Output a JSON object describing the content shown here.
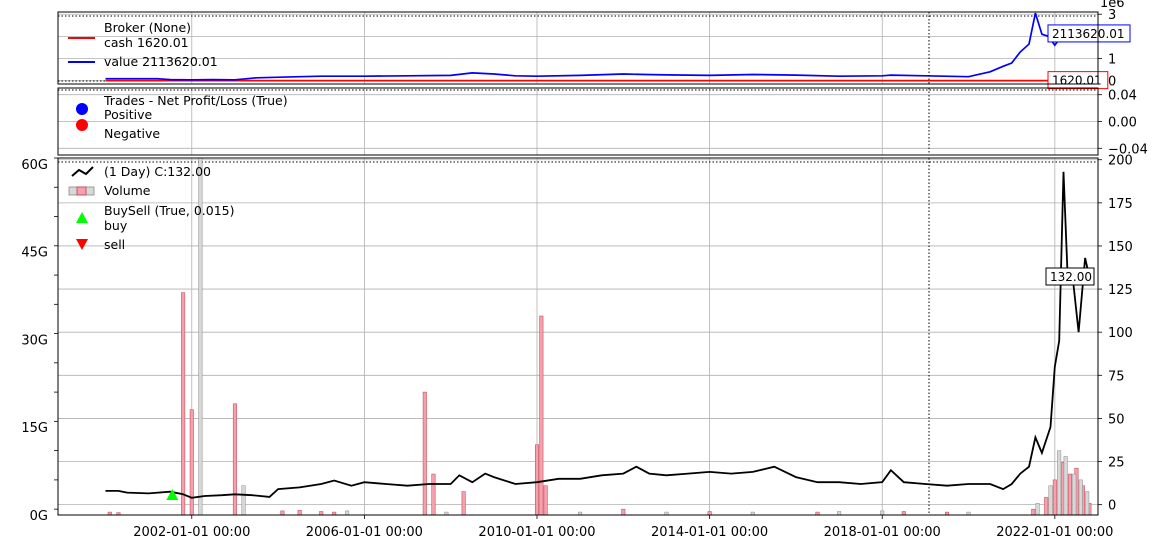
{
  "chart_data": [
    {
      "panel": "broker",
      "type": "line",
      "y_offset_label": "1e6",
      "ylim": [
        -0.15,
        3.1
      ],
      "yticks": [
        0,
        1,
        2,
        3
      ],
      "ytick_labels": [
        "0",
        "1",
        "2",
        "3"
      ],
      "grid": true,
      "legend_placement": "top-left",
      "legend_title": "Broker (None)",
      "series": [
        {
          "name": "cash 1620.01",
          "color": "#ff0000",
          "last_label": "1620.01",
          "points": [
            [
              2000.0,
              0.0016
            ],
            [
              2022.2,
              0.0016
            ]
          ]
        },
        {
          "name": "value 2113620.01",
          "color": "#0000ff",
          "last_label": "2113620.01",
          "points": [
            [
              2000.0,
              0.09
            ],
            [
              2001.2,
              0.09
            ],
            [
              2001.5,
              0.05
            ],
            [
              2002.0,
              0.04
            ],
            [
              2002.5,
              0.05
            ],
            [
              2003.0,
              0.04
            ],
            [
              2003.5,
              0.13
            ],
            [
              2004.5,
              0.18
            ],
            [
              2005.0,
              0.2
            ],
            [
              2006.0,
              0.2
            ],
            [
              2007.0,
              0.22
            ],
            [
              2008.0,
              0.24
            ],
            [
              2008.5,
              0.35
            ],
            [
              2009.0,
              0.3
            ],
            [
              2009.5,
              0.22
            ],
            [
              2010.0,
              0.2
            ],
            [
              2011.0,
              0.24
            ],
            [
              2012.0,
              0.3
            ],
            [
              2012.5,
              0.28
            ],
            [
              2013.0,
              0.26
            ],
            [
              2014.0,
              0.24
            ],
            [
              2015.0,
              0.28
            ],
            [
              2016.0,
              0.25
            ],
            [
              2017.0,
              0.2
            ],
            [
              2018.0,
              0.22
            ],
            [
              2018.2,
              0.25
            ],
            [
              2019.0,
              0.22
            ],
            [
              2020.0,
              0.18
            ],
            [
              2020.5,
              0.4
            ],
            [
              2020.8,
              0.65
            ],
            [
              2021.0,
              0.8
            ],
            [
              2021.2,
              1.3
            ],
            [
              2021.4,
              1.65
            ],
            [
              2021.55,
              3.05
            ],
            [
              2021.7,
              2.1
            ],
            [
              2021.85,
              2.0
            ],
            [
              2022.0,
              1.6
            ],
            [
              2022.2,
              2.11
            ]
          ]
        }
      ]
    },
    {
      "panel": "trades",
      "type": "scatter",
      "ylim": [
        -0.05,
        0.05
      ],
      "yticks": [
        -0.04,
        0.0,
        0.04
      ],
      "ytick_labels": [
        "−0.04",
        "0.00",
        "0.04"
      ],
      "grid": true,
      "legend_placement": "top-left",
      "legend_title": "Trades - Net Profit/Loss (True)",
      "series": [
        {
          "name": "Positive",
          "color": "#0000ff",
          "values": []
        },
        {
          "name": "Negative",
          "color": "#ff0000",
          "values": []
        }
      ]
    },
    {
      "panel": "price",
      "type": "line",
      "xlim": [
        1998.9,
        2023.0
      ],
      "xticks": [
        "2002-01-01 00:00",
        "2006-01-01 00:00",
        "2010-01-01 00:00",
        "2014-01-01 00:00",
        "2018-01-01 00:00",
        "2022-01-01 00:00"
      ],
      "xtick_years": [
        2002,
        2006,
        2010,
        2014,
        2018,
        2022
      ],
      "ylim": [
        -6,
        201
      ],
      "yticks": [
        0,
        25,
        50,
        75,
        100,
        125,
        150,
        175,
        200
      ],
      "ytick_labels": [
        "0",
        "25",
        "50",
        "75",
        "100",
        "125",
        "150",
        "175",
        "200"
      ],
      "volume_ylim": [
        0,
        61
      ],
      "volume_ticks": [
        0,
        15,
        30,
        45,
        60
      ],
      "volume_tick_labels": [
        "0G",
        "15G",
        "30G",
        "45G",
        "60G"
      ],
      "grid": true,
      "legend_placement": "top-left",
      "legend": [
        "(1 Day) C:132.00",
        "Volume",
        "BuySell (True, 0.015)",
        "buy",
        "sell"
      ],
      "last_close_label": "132.00",
      "close": [
        [
          2000.0,
          8
        ],
        [
          2000.3,
          8
        ],
        [
          2000.5,
          7
        ],
        [
          2001.0,
          6.5
        ],
        [
          2001.5,
          7.5
        ],
        [
          2001.8,
          6
        ],
        [
          2002.0,
          4
        ],
        [
          2002.3,
          5
        ],
        [
          2002.7,
          5.5
        ],
        [
          2003.0,
          6
        ],
        [
          2003.4,
          5.5
        ],
        [
          2003.8,
          4.5
        ],
        [
          2004.0,
          9
        ],
        [
          2004.5,
          10
        ],
        [
          2005.0,
          12
        ],
        [
          2005.3,
          14
        ],
        [
          2005.7,
          11
        ],
        [
          2006.0,
          13
        ],
        [
          2006.5,
          12
        ],
        [
          2007.0,
          11
        ],
        [
          2007.5,
          12
        ],
        [
          2008.0,
          12
        ],
        [
          2008.2,
          17
        ],
        [
          2008.5,
          13
        ],
        [
          2008.8,
          18
        ],
        [
          2009.0,
          16
        ],
        [
          2009.5,
          12
        ],
        [
          2010.0,
          13
        ],
        [
          2010.5,
          15
        ],
        [
          2011.0,
          15
        ],
        [
          2011.5,
          17
        ],
        [
          2012.0,
          18
        ],
        [
          2012.3,
          22
        ],
        [
          2012.6,
          18
        ],
        [
          2013.0,
          17
        ],
        [
          2013.5,
          18
        ],
        [
          2014.0,
          19
        ],
        [
          2014.5,
          18
        ],
        [
          2015.0,
          19
        ],
        [
          2015.5,
          22
        ],
        [
          2016.0,
          16
        ],
        [
          2016.5,
          13
        ],
        [
          2017.0,
          13
        ],
        [
          2017.5,
          12
        ],
        [
          2018.0,
          13
        ],
        [
          2018.2,
          20
        ],
        [
          2018.5,
          13
        ],
        [
          2019.0,
          12
        ],
        [
          2019.5,
          11
        ],
        [
          2020.0,
          12
        ],
        [
          2020.5,
          12
        ],
        [
          2020.8,
          9
        ],
        [
          2021.0,
          12
        ],
        [
          2021.2,
          18
        ],
        [
          2021.4,
          22
        ],
        [
          2021.55,
          39
        ],
        [
          2021.7,
          30
        ],
        [
          2021.9,
          45
        ],
        [
          2022.0,
          80
        ],
        [
          2022.1,
          95
        ],
        [
          2022.2,
          193
        ],
        [
          2022.3,
          130
        ],
        [
          2022.4,
          135
        ],
        [
          2022.55,
          100
        ],
        [
          2022.7,
          143
        ],
        [
          2022.8,
          132
        ]
      ],
      "buy_markers": [
        [
          2001.55,
          5
        ]
      ],
      "volume_pink": [
        [
          2000.1,
          0.5
        ],
        [
          2000.3,
          0.4
        ],
        [
          2001.8,
          38
        ],
        [
          2002.0,
          18
        ],
        [
          2003.0,
          19
        ],
        [
          2004.1,
          0.7
        ],
        [
          2004.5,
          0.8
        ],
        [
          2005.0,
          0.6
        ],
        [
          2005.3,
          0.5
        ],
        [
          2007.4,
          21
        ],
        [
          2007.6,
          7
        ],
        [
          2008.3,
          4
        ],
        [
          2010.0,
          12
        ],
        [
          2010.1,
          34
        ],
        [
          2010.2,
          5
        ],
        [
          2012.0,
          1
        ],
        [
          2014.0,
          0.6
        ],
        [
          2016.5,
          0.5
        ],
        [
          2018.5,
          0.6
        ],
        [
          2019.5,
          0.5
        ],
        [
          2021.5,
          1
        ],
        [
          2021.8,
          3
        ],
        [
          2022.0,
          6
        ],
        [
          2022.2,
          9
        ],
        [
          2022.35,
          7
        ],
        [
          2022.5,
          8
        ],
        [
          2022.65,
          5
        ],
        [
          2022.8,
          2
        ]
      ],
      "volume_grey": [
        [
          2002.2,
          61
        ],
        [
          2003.2,
          5
        ],
        [
          2005.6,
          0.7
        ],
        [
          2007.9,
          0.5
        ],
        [
          2011.0,
          0.5
        ],
        [
          2013.0,
          0.5
        ],
        [
          2015.0,
          0.5
        ],
        [
          2017.0,
          0.6
        ],
        [
          2018.0,
          0.7
        ],
        [
          2020.0,
          0.5
        ],
        [
          2021.6,
          2
        ],
        [
          2021.9,
          5
        ],
        [
          2022.1,
          11
        ],
        [
          2022.25,
          10
        ],
        [
          2022.45,
          7
        ],
        [
          2022.6,
          6
        ],
        [
          2022.75,
          4
        ]
      ]
    }
  ]
}
